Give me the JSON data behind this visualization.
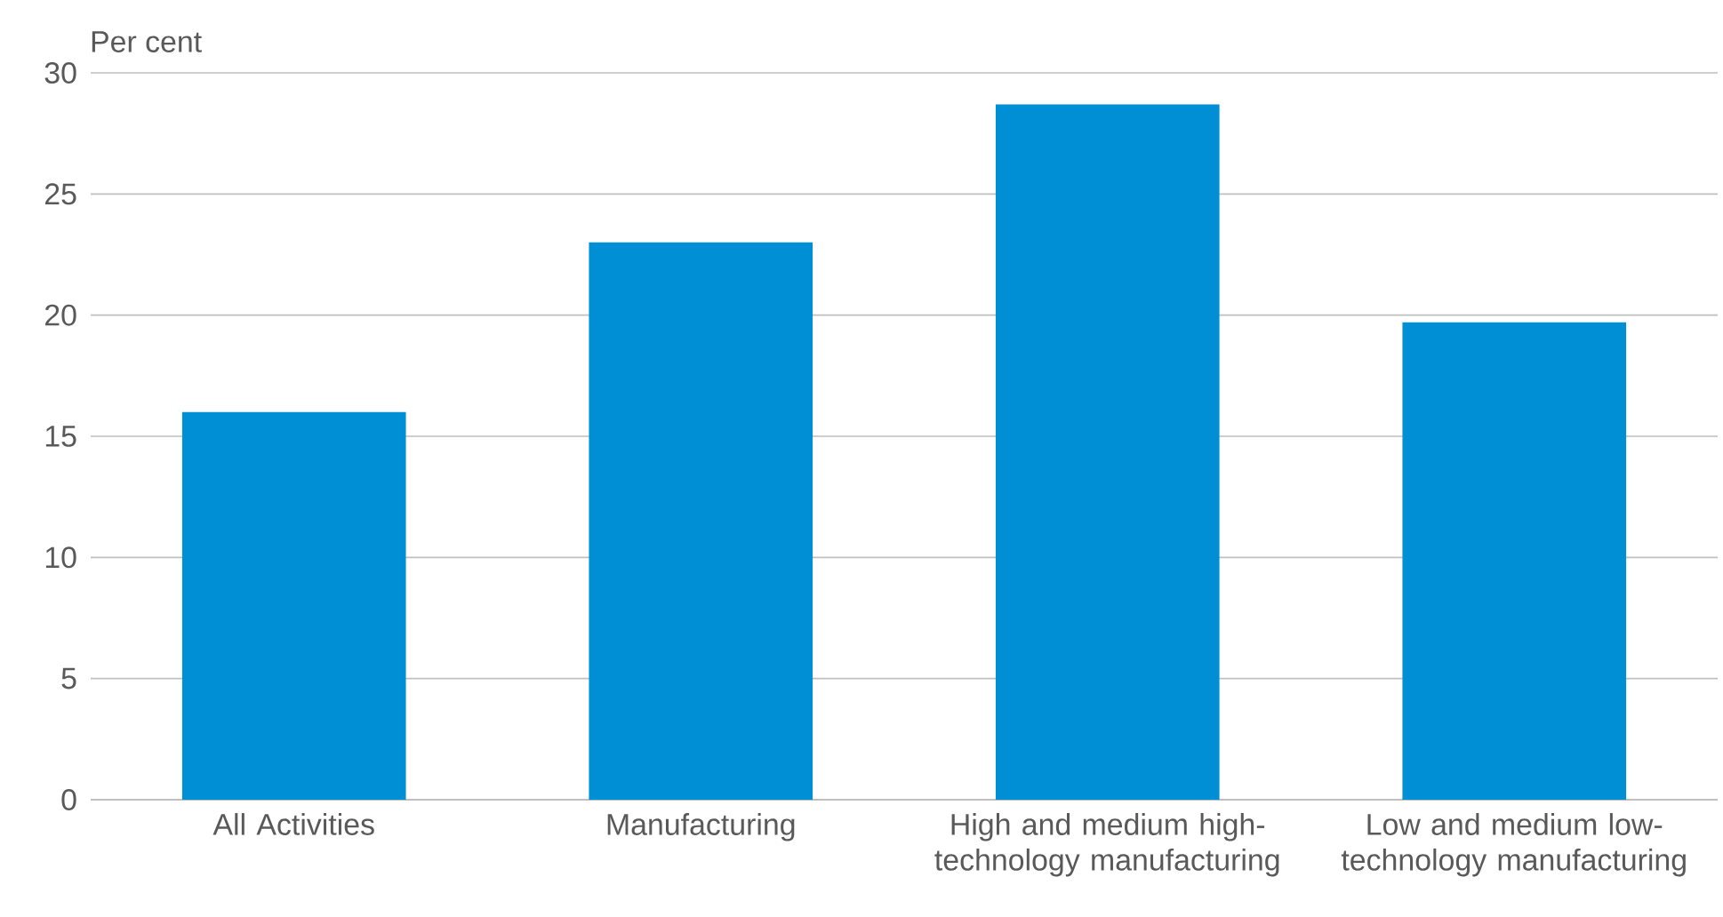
{
  "chart_data": {
    "type": "bar",
    "ylabel": "Per cent",
    "categories": [
      "All Activities",
      "Manufacturing",
      "High and medium high-technology manufacturing",
      "Low and medium low-technology manufacturing"
    ],
    "values": [
      16.0,
      23.0,
      28.7,
      19.7
    ],
    "color": "#008fd5",
    "ylim": [
      0,
      30
    ],
    "yticks": [
      0,
      5,
      10,
      15,
      20,
      25,
      30
    ],
    "grid": "y"
  }
}
